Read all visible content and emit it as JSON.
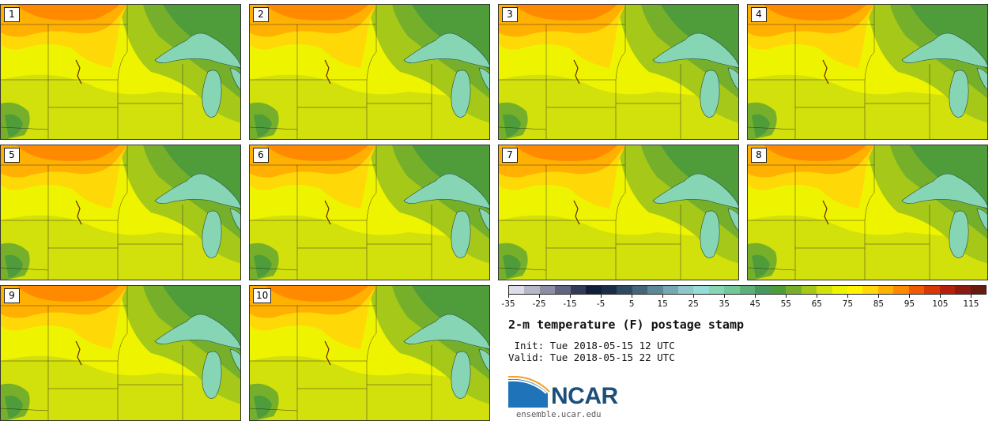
{
  "panels": [
    {
      "label": "1"
    },
    {
      "label": "2"
    },
    {
      "label": "3"
    },
    {
      "label": "4"
    },
    {
      "label": "5"
    },
    {
      "label": "6"
    },
    {
      "label": "7"
    },
    {
      "label": "8"
    },
    {
      "label": "9"
    },
    {
      "label": "10"
    }
  ],
  "colorbar": {
    "colors": [
      "#dcdde8",
      "#b6b8c8",
      "#8c8ea6",
      "#5f6480",
      "#313a58",
      "#0f1f3a",
      "#1a2d46",
      "#2e4a60",
      "#44667a",
      "#5c8898",
      "#76a8b4",
      "#8fc6cc",
      "#96dcd6",
      "#86d6b6",
      "#72c896",
      "#5cb078",
      "#47985c",
      "#4e9c3a",
      "#76b02a",
      "#a6c818",
      "#d2e00c",
      "#eef400",
      "#fff500",
      "#ffd808",
      "#ffb000",
      "#ff8a00",
      "#f05a00",
      "#d63808",
      "#b4200e",
      "#8c1a10",
      "#661a10"
    ],
    "ticks": [
      "-35",
      "-25",
      "-15",
      "-5",
      "5",
      "15",
      "25",
      "35",
      "45",
      "55",
      "65",
      "75",
      "85",
      "95",
      "105",
      "115"
    ]
  },
  "title": "2-m temperature (F) postage stamp",
  "init": " Init: Tue 2018-05-15 12 UTC",
  "valid": "Valid: Tue 2018-05-15 22 UTC",
  "logo": {
    "text": "NCAR",
    "url": "ensemble.ucar.edu"
  },
  "colors": {
    "temp_55": "#4e9c3a",
    "temp_60": "#76b02a",
    "temp_65": "#a6c818",
    "temp_70": "#d2e00c",
    "temp_75": "#eef400",
    "temp_80": "#fff500",
    "temp_85": "#ffd808",
    "temp_90": "#ffb000",
    "temp_95": "#ff8a00",
    "lake": "#86d6b6"
  }
}
